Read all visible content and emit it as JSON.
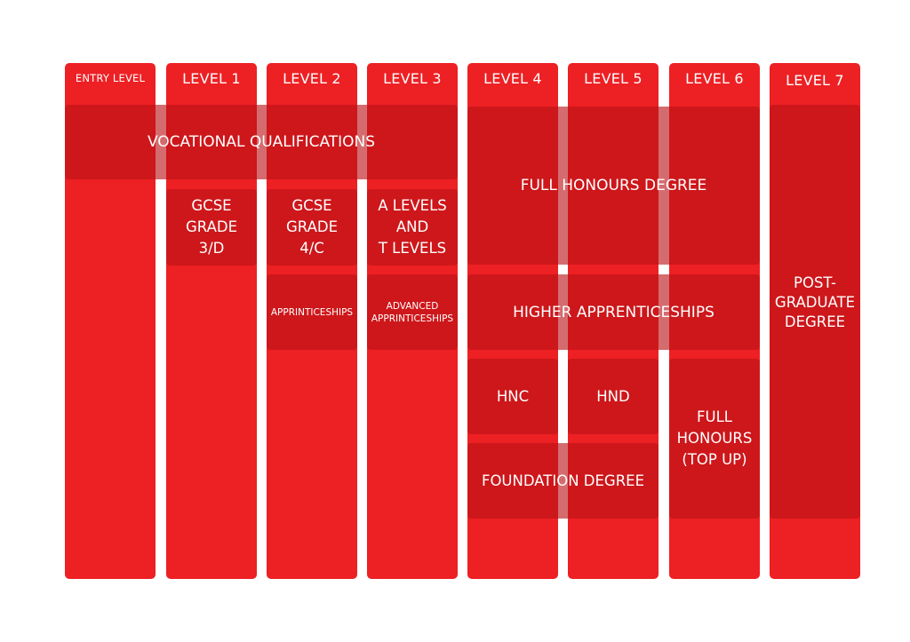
{
  "levels": [
    {
      "label": "ENTRY LEVEL"
    },
    {
      "label": "LEVEL 1"
    },
    {
      "label": "LEVEL 2"
    },
    {
      "label": "LEVEL 3"
    },
    {
      "label": "LEVEL 4"
    },
    {
      "label": "LEVEL 5"
    },
    {
      "label": "LEVEL 6"
    },
    {
      "label": "LEVEL 7"
    }
  ],
  "qualifications": {
    "vocational": "VOCATIONAL QUALIFICATIONS",
    "gcse_3d": "GCSE\nGRADE\n3/D",
    "gcse_4c": "GCSE\nGRADE\n4/C",
    "a_levels": "A LEVELS\nAND\nT LEVELS",
    "apprenticeships": "APPRINTICESHIPS",
    "advanced_apprenticeships": "ADVANCED\nAPPRINTICESHIPS",
    "full_honours_degree": "FULL HONOURS DEGREE",
    "higher_apprenticeships": "HIGHER APPRENTICESHIPS",
    "hnc": "HNC",
    "hnd": "HND",
    "foundation_degree": "FOUNDATION DEGREE",
    "full_honours_top_up": "FULL\nHONOURS\n(TOP UP)",
    "post_graduate": "POST-\nGRADUATE\nDEGREE"
  },
  "colors": {
    "column": "#ed2024",
    "block": "#b91216",
    "text": "#ffffff"
  }
}
